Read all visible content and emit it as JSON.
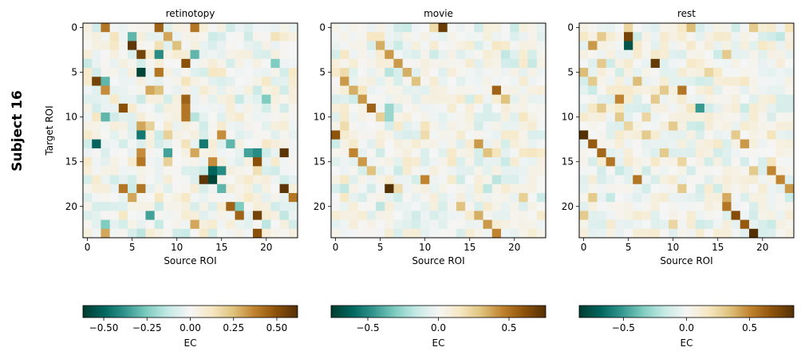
{
  "figure": {
    "suptitle": "Subject 16"
  },
  "colormap": {
    "name": "BrBG_r",
    "stops": [
      "#003c30",
      "#01665e",
      "#35978f",
      "#80cdc1",
      "#c7eae5",
      "#f5f5f5",
      "#f6e8c3",
      "#dfc27d",
      "#bf812d",
      "#8c510a",
      "#543005"
    ]
  },
  "chart_data": [
    {
      "type": "heatmap",
      "title": "retinotopy",
      "xlabel": "Source ROI",
      "ylabel": "Target ROI",
      "n": 24,
      "xticks": [
        0,
        5,
        10,
        15,
        20
      ],
      "yticks": [
        0,
        5,
        10,
        15,
        20
      ],
      "colorbar": {
        "label": "EC",
        "vmin": -0.62,
        "vmax": 0.62,
        "ticks": [
          -0.5,
          -0.25,
          0.0,
          0.25,
          0.5
        ],
        "tick_labels": [
          "−0.50",
          "−0.25",
          "0.00",
          "0.25",
          "0.50"
        ]
      },
      "seed": 16,
      "diag_scale": 0.18,
      "strong": [
        {
          "r": 0,
          "c": 2,
          "v": 0.4
        },
        {
          "r": 0,
          "c": 8,
          "v": 0.45
        },
        {
          "r": 0,
          "c": 12,
          "v": 0.4
        },
        {
          "r": 1,
          "c": 5,
          "v": -0.3
        },
        {
          "r": 1,
          "c": 9,
          "v": 0.3
        },
        {
          "r": 2,
          "c": 5,
          "v": 0.6
        },
        {
          "r": 2,
          "c": 10,
          "v": 0.25
        },
        {
          "r": 3,
          "c": 6,
          "v": 0.55
        },
        {
          "r": 3,
          "c": 8,
          "v": -0.4
        },
        {
          "r": 3,
          "c": 12,
          "v": -0.3
        },
        {
          "r": 4,
          "c": 11,
          "v": 0.5
        },
        {
          "r": 4,
          "c": 21,
          "v": -0.25
        },
        {
          "r": 5,
          "c": 6,
          "v": -0.6
        },
        {
          "r": 5,
          "c": 8,
          "v": 0.4
        },
        {
          "r": 6,
          "c": 1,
          "v": 0.55
        },
        {
          "r": 6,
          "c": 2,
          "v": -0.3
        },
        {
          "r": 7,
          "c": 2,
          "v": 0.35
        },
        {
          "r": 7,
          "c": 7,
          "v": 0.3
        },
        {
          "r": 7,
          "c": 8,
          "v": 0.25
        },
        {
          "r": 8,
          "c": 11,
          "v": 0.45
        },
        {
          "r": 8,
          "c": 20,
          "v": -0.25
        },
        {
          "r": 9,
          "c": 4,
          "v": 0.5
        },
        {
          "r": 9,
          "c": 11,
          "v": 0.4
        },
        {
          "r": 10,
          "c": 2,
          "v": -0.3
        },
        {
          "r": 10,
          "c": 11,
          "v": 0.4
        },
        {
          "r": 11,
          "c": 6,
          "v": 0.3
        },
        {
          "r": 11,
          "c": 7,
          "v": 0.2
        },
        {
          "r": 12,
          "c": 6,
          "v": -0.45
        },
        {
          "r": 12,
          "c": 9,
          "v": 0.2
        },
        {
          "r": 12,
          "c": 15,
          "v": 0.35
        },
        {
          "r": 13,
          "c": 1,
          "v": -0.5
        },
        {
          "r": 13,
          "c": 13,
          "v": -0.45
        },
        {
          "r": 13,
          "c": 16,
          "v": -0.3
        },
        {
          "r": 14,
          "c": 6,
          "v": 0.35
        },
        {
          "r": 14,
          "c": 9,
          "v": -0.35
        },
        {
          "r": 14,
          "c": 12,
          "v": 0.3
        },
        {
          "r": 14,
          "c": 18,
          "v": -0.35
        },
        {
          "r": 14,
          "c": 19,
          "v": -0.4
        },
        {
          "r": 14,
          "c": 22,
          "v": 0.6
        },
        {
          "r": 15,
          "c": 6,
          "v": 0.4
        },
        {
          "r": 15,
          "c": 9,
          "v": 0.2
        },
        {
          "r": 15,
          "c": 14,
          "v": 0.35
        },
        {
          "r": 15,
          "c": 19,
          "v": 0.5
        },
        {
          "r": 16,
          "c": 14,
          "v": -0.5
        },
        {
          "r": 16,
          "c": 15,
          "v": -0.4
        },
        {
          "r": 17,
          "c": 13,
          "v": 0.6
        },
        {
          "r": 17,
          "c": 14,
          "v": -0.6
        },
        {
          "r": 18,
          "c": 4,
          "v": 0.4
        },
        {
          "r": 18,
          "c": 6,
          "v": 0.4
        },
        {
          "r": 18,
          "c": 15,
          "v": -0.3
        },
        {
          "r": 18,
          "c": 22,
          "v": 0.6
        },
        {
          "r": 19,
          "c": 5,
          "v": 0.3
        },
        {
          "r": 19,
          "c": 23,
          "v": 0.4
        },
        {
          "r": 20,
          "c": 16,
          "v": 0.45
        },
        {
          "r": 20,
          "c": 17,
          "v": -0.25
        },
        {
          "r": 21,
          "c": 7,
          "v": -0.35
        },
        {
          "r": 21,
          "c": 17,
          "v": 0.45
        },
        {
          "r": 21,
          "c": 19,
          "v": 0.55
        },
        {
          "r": 22,
          "c": 2,
          "v": -0.25
        },
        {
          "r": 22,
          "c": 12,
          "v": 0.3
        },
        {
          "r": 23,
          "c": 2,
          "v": 0.3
        },
        {
          "r": 23,
          "c": 19,
          "v": 0.5
        }
      ]
    },
    {
      "type": "heatmap",
      "title": "movie",
      "xlabel": "Source ROI",
      "ylabel": "",
      "n": 24,
      "xticks": [
        0,
        5,
        10,
        15,
        20
      ],
      "yticks": [
        0,
        5,
        10,
        15,
        20
      ],
      "colorbar": {
        "label": "EC",
        "vmin": -0.76,
        "vmax": 0.76,
        "ticks": [
          -0.5,
          0.0,
          0.5
        ],
        "tick_labels": [
          "−0.5",
          "0.0",
          "0.5"
        ]
      },
      "seed": 42,
      "diag_scale": 0.1,
      "strong": [
        {
          "r": 0,
          "c": 12,
          "v": 0.7
        },
        {
          "r": 0,
          "c": 11,
          "v": 0.2
        },
        {
          "r": 1,
          "c": 4,
          "v": 0.15
        },
        {
          "r": 2,
          "c": 5,
          "v": 0.35
        },
        {
          "r": 3,
          "c": 6,
          "v": 0.4
        },
        {
          "r": 4,
          "c": 7,
          "v": 0.4
        },
        {
          "r": 5,
          "c": 8,
          "v": 0.35
        },
        {
          "r": 5,
          "c": 1,
          "v": 0.2
        },
        {
          "r": 6,
          "c": 1,
          "v": 0.4
        },
        {
          "r": 6,
          "c": 9,
          "v": 0.3
        },
        {
          "r": 7,
          "c": 2,
          "v": 0.35
        },
        {
          "r": 7,
          "c": 18,
          "v": 0.55
        },
        {
          "r": 8,
          "c": 3,
          "v": 0.4
        },
        {
          "r": 8,
          "c": 19,
          "v": 0.3
        },
        {
          "r": 9,
          "c": 4,
          "v": 0.55
        },
        {
          "r": 9,
          "c": 6,
          "v": -0.25
        },
        {
          "r": 10,
          "c": 6,
          "v": -0.25
        },
        {
          "r": 10,
          "c": 5,
          "v": 0.25
        },
        {
          "r": 11,
          "c": 1,
          "v": 0.2
        },
        {
          "r": 12,
          "c": 0,
          "v": 0.6
        },
        {
          "r": 12,
          "c": 10,
          "v": 0.2
        },
        {
          "r": 13,
          "c": 16,
          "v": 0.4
        },
        {
          "r": 14,
          "c": 2,
          "v": 0.45
        },
        {
          "r": 14,
          "c": 17,
          "v": 0.3
        },
        {
          "r": 15,
          "c": 3,
          "v": 0.4
        },
        {
          "r": 16,
          "c": 4,
          "v": 0.3
        },
        {
          "r": 17,
          "c": 10,
          "v": 0.45
        },
        {
          "r": 18,
          "c": 6,
          "v": 0.76
        },
        {
          "r": 18,
          "c": 7,
          "v": 0.2
        },
        {
          "r": 19,
          "c": 21,
          "v": 0.25
        },
        {
          "r": 20,
          "c": 14,
          "v": 0.3
        },
        {
          "r": 21,
          "c": 16,
          "v": 0.35
        },
        {
          "r": 22,
          "c": 17,
          "v": 0.4
        },
        {
          "r": 23,
          "c": 18,
          "v": 0.45
        }
      ]
    },
    {
      "type": "heatmap",
      "title": "rest",
      "xlabel": "Source ROI",
      "ylabel": "",
      "n": 24,
      "xticks": [
        0,
        5,
        10,
        15,
        20
      ],
      "yticks": [
        0,
        5,
        10,
        15,
        20
      ],
      "colorbar": {
        "label": "EC",
        "vmin": -0.85,
        "vmax": 0.85,
        "ticks": [
          -0.5,
          0.0,
          0.5
        ],
        "tick_labels": [
          "−0.5",
          "0.0",
          "0.5"
        ]
      },
      "seed": 7,
      "diag_scale": 0.15,
      "strong": [
        {
          "r": 0,
          "c": 5,
          "v": 0.25
        },
        {
          "r": 0,
          "c": 12,
          "v": 0.35
        },
        {
          "r": 0,
          "c": 19,
          "v": 0.3
        },
        {
          "r": 1,
          "c": 5,
          "v": 0.75
        },
        {
          "r": 1,
          "c": 2,
          "v": 0.3
        },
        {
          "r": 2,
          "c": 1,
          "v": 0.45
        },
        {
          "r": 2,
          "c": 5,
          "v": -0.75
        },
        {
          "r": 3,
          "c": 16,
          "v": 0.3
        },
        {
          "r": 4,
          "c": 8,
          "v": 0.8
        },
        {
          "r": 4,
          "c": 2,
          "v": 0.3
        },
        {
          "r": 5,
          "c": 0,
          "v": 0.35
        },
        {
          "r": 5,
          "c": 14,
          "v": 0.25
        },
        {
          "r": 6,
          "c": 1,
          "v": 0.3
        },
        {
          "r": 6,
          "c": 6,
          "v": 0.35
        },
        {
          "r": 7,
          "c": 11,
          "v": 0.55
        },
        {
          "r": 7,
          "c": 9,
          "v": 0.3
        },
        {
          "r": 8,
          "c": 4,
          "v": 0.5
        },
        {
          "r": 8,
          "c": 8,
          "v": 0.3
        },
        {
          "r": 9,
          "c": 13,
          "v": -0.5
        },
        {
          "r": 9,
          "c": 2,
          "v": 0.3
        },
        {
          "r": 10,
          "c": 4,
          "v": 0.3
        },
        {
          "r": 10,
          "c": 7,
          "v": 0.25
        },
        {
          "r": 11,
          "c": 5,
          "v": 0.25
        },
        {
          "r": 11,
          "c": 10,
          "v": 0.3
        },
        {
          "r": 12,
          "c": 0,
          "v": 0.85
        },
        {
          "r": 12,
          "c": 7,
          "v": 0.3
        },
        {
          "r": 12,
          "c": 17,
          "v": 0.3
        },
        {
          "r": 13,
          "c": 1,
          "v": 0.65
        },
        {
          "r": 13,
          "c": 18,
          "v": 0.45
        },
        {
          "r": 14,
          "c": 2,
          "v": 0.6
        },
        {
          "r": 14,
          "c": 9,
          "v": 0.3
        },
        {
          "r": 15,
          "c": 3,
          "v": 0.55
        },
        {
          "r": 15,
          "c": 11,
          "v": 0.25
        },
        {
          "r": 16,
          "c": 19,
          "v": 0.3
        },
        {
          "r": 16,
          "c": 21,
          "v": 0.5
        },
        {
          "r": 17,
          "c": 6,
          "v": 0.55
        },
        {
          "r": 17,
          "c": 22,
          "v": 0.5
        },
        {
          "r": 18,
          "c": 23,
          "v": 0.45
        },
        {
          "r": 18,
          "c": 11,
          "v": 0.3
        },
        {
          "r": 19,
          "c": 1,
          "v": 0.3
        },
        {
          "r": 19,
          "c": 16,
          "v": 0.4
        },
        {
          "r": 20,
          "c": 16,
          "v": 0.55
        },
        {
          "r": 21,
          "c": 17,
          "v": 0.7
        },
        {
          "r": 21,
          "c": 0,
          "v": 0.3
        },
        {
          "r": 22,
          "c": 18,
          "v": 0.65
        },
        {
          "r": 22,
          "c": 10,
          "v": 0.25
        },
        {
          "r": 23,
          "c": 19,
          "v": 0.85
        }
      ]
    }
  ]
}
